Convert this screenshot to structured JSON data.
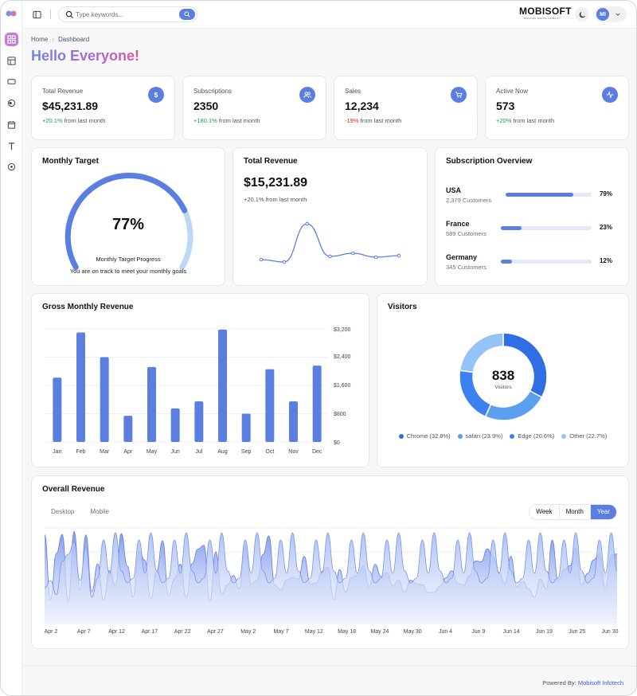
{
  "header": {
    "search_placeholder": "Type keywords...",
    "brand_name": "MOBISOFT",
    "brand_tagline": "Building digital mobility",
    "user_initials": "MI"
  },
  "breadcrumb": {
    "home": "Home",
    "current": "Dashboard"
  },
  "greeting": "Hello Everyone!",
  "stats": [
    {
      "title": "Total Revenue",
      "value": "$45,231.89",
      "change": "+20.1%",
      "change_suffix": "from last month",
      "icon": "dollar-icon"
    },
    {
      "title": "Subscriptions",
      "value": "2350",
      "change": "+180.1%",
      "change_suffix": "from last month",
      "icon": "users-icon"
    },
    {
      "title": "Sales",
      "value": "12,234",
      "change": "-19%",
      "change_suffix": "from last month",
      "icon": "cart-icon"
    },
    {
      "title": "Active Now",
      "value": "573",
      "change": "+20%",
      "change_suffix": "from last month",
      "icon": "activity-icon"
    }
  ],
  "monthly_target": {
    "title": "Monthly Target",
    "percent": "77%",
    "progress": 0.77,
    "label": "Monthly Target Progress",
    "subtitle": "You are on track to meet your monthly goals"
  },
  "total_revenue": {
    "title": "Total Revenue",
    "value": "$15,231.89",
    "change": "+20.1% from last month",
    "sparkline": [
      10,
      7,
      55,
      14,
      18,
      13,
      15
    ]
  },
  "subscription_overview": {
    "title": "Subscription Overview",
    "rows": [
      {
        "country": "USA",
        "customers": "2,379 Customers",
        "percent": "79%",
        "value": 0.79
      },
      {
        "country": "France",
        "customers": "589 Customers",
        "percent": "23%",
        "value": 0.23
      },
      {
        "country": "Germany",
        "customers": "345 Customers",
        "percent": "12%",
        "value": 0.12
      }
    ]
  },
  "gross_monthly_revenue": {
    "title": "Gross Monthly Revenue",
    "y_ticks": [
      "$3,200",
      "$2,400",
      "$1,600",
      "$800",
      "$0"
    ]
  },
  "visitors": {
    "title": "Visitors",
    "total": "838",
    "total_label": "Visitors",
    "legend": [
      {
        "label": "Chrome (32.8%)",
        "color": "#2f6fe3"
      },
      {
        "label": "safari (23.9%)",
        "color": "#5aa0ee"
      },
      {
        "label": "Edge (20.6%)",
        "color": "#3b82f0"
      },
      {
        "label": "Other (22.7%)",
        "color": "#93c3f7"
      }
    ]
  },
  "overall_revenue": {
    "title": "Overall Revenue",
    "tabs": [
      "Desktop",
      "Mobile"
    ],
    "ranges": [
      "Week",
      "Month",
      "Year"
    ],
    "active_range": "Year",
    "x_labels": [
      "Apr 2",
      "Apr 7",
      "Apr 12",
      "Apr 17",
      "Apr 22",
      "Apr 27",
      "May 2",
      "May 7",
      "May 12",
      "May 18",
      "May 24",
      "May 30",
      "Jun 4",
      "Jun 9",
      "Jun 14",
      "Jun 19",
      "Jun 25",
      "Jun 30"
    ]
  },
  "footer": {
    "prefix": "Powered By:",
    "company": "Mobisoft Infotech"
  },
  "chart_data": [
    {
      "type": "bar",
      "title": "Gross Monthly Revenue",
      "categories": [
        "Jan",
        "Feb",
        "Mar",
        "Apr",
        "May",
        "Jun",
        "Jul",
        "Aug",
        "Sep",
        "Oct",
        "Nov",
        "Dec"
      ],
      "values": [
        1820,
        3100,
        2400,
        740,
        2120,
        950,
        1150,
        3180,
        800,
        2060,
        1150,
        2160
      ],
      "ylim": [
        0,
        3200
      ],
      "color": "#5b7fe0"
    },
    {
      "type": "pie",
      "title": "Visitors",
      "categories": [
        "Chrome",
        "safari",
        "Edge",
        "Other"
      ],
      "values": [
        32.8,
        23.9,
        20.6,
        22.7
      ]
    },
    {
      "type": "area",
      "title": "Overall Revenue",
      "series": [
        {
          "name": "Desktop",
          "values": [
            372,
            101,
            293,
            373,
            92,
            385,
            140,
            371,
            133,
            250,
            98,
            221,
            160,
            377,
            241,
            111,
            302,
            265,
            103,
            219,
            347,
            116,
            186,
            249,
            108,
            251,
            312,
            328,
            95,
            300,
            123,
            162,
            201,
            145,
            329,
            165,
            181,
            289,
            367,
            160,
            140,
            182,
            192,
            186,
            281,
            165,
            170,
            218,
            236,
            101,
            226,
            131,
            192,
            202,
            242,
            153,
            248,
            196,
            213,
            159,
            182,
            130,
            181,
            167,
            162,
            129,
            130,
            157,
            191,
            221,
            167,
            160,
            200,
            262,
            259,
            313,
            280,
            213,
            166,
            282,
            153,
            177,
            145,
            110,
            186,
            145,
            350,
            180,
            226,
            242,
            317,
            162,
            209,
            266,
            293,
            143,
            287,
            291
          ]
        },
        {
          "name": "Mobile",
          "values": [
            150,
            180,
            120,
            260,
            290,
            340,
            180,
            320,
            110,
            190,
            350,
            210,
            380,
            220,
            170,
            190,
            350,
            210,
            380,
            220,
            170,
            190,
            350,
            210,
            380,
            220,
            170,
            190,
            350,
            210,
            380,
            220,
            170,
            190,
            350,
            210,
            380,
            220,
            170,
            190,
            350,
            210,
            380,
            220,
            170,
            190,
            350,
            210,
            380,
            220,
            170,
            190,
            350,
            210,
            380,
            220,
            170,
            190,
            350,
            210,
            380,
            220,
            170,
            190,
            350,
            210,
            380,
            220,
            170,
            190,
            350,
            210,
            380,
            220,
            170,
            190,
            350,
            210,
            380,
            220,
            170,
            190,
            350,
            210,
            380,
            220,
            170,
            190,
            350,
            210,
            380,
            220,
            170,
            190,
            350,
            210,
            380,
            220
          ]
        }
      ]
    }
  ]
}
